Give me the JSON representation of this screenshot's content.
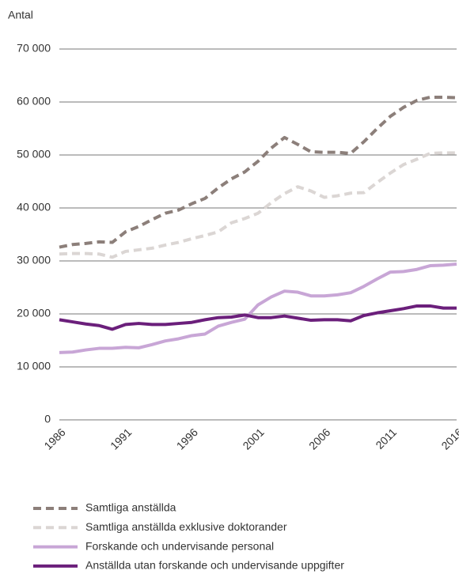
{
  "chart_data": {
    "type": "line",
    "y_label": "Antal",
    "x": [
      1986,
      1987,
      1988,
      1989,
      1990,
      1991,
      1992,
      1993,
      1994,
      1995,
      1996,
      1997,
      1998,
      1999,
      2000,
      2001,
      2002,
      2003,
      2004,
      2005,
      2006,
      2007,
      2008,
      2009,
      2010,
      2011,
      2012,
      2013,
      2014,
      2015,
      2016
    ],
    "xlim": [
      1986,
      2016
    ],
    "xticks": [
      1986,
      1991,
      1996,
      2001,
      2006,
      2011,
      2016
    ],
    "ylim": [
      0,
      70000
    ],
    "yticks": [
      0,
      {
        "value": 10000,
        "label": "10 000"
      },
      {
        "value": 20000,
        "label": "20 000"
      },
      {
        "value": 30000,
        "label": "30 000"
      },
      {
        "value": 40000,
        "label": "40 000"
      },
      {
        "value": 50000,
        "label": "50 000"
      },
      {
        "value": 60000,
        "label": "60 000"
      },
      {
        "value": 70000,
        "label": "70 000"
      }
    ],
    "grid": true,
    "legend": "bottom",
    "series": [
      {
        "name": "Samtliga anställda",
        "color": "#8c7f7a",
        "style": "dashed",
        "values": [
          32600,
          33100,
          33300,
          33600,
          33500,
          35500,
          36500,
          37800,
          39000,
          39600,
          40800,
          41800,
          43800,
          45500,
          46800,
          48800,
          51300,
          53300,
          52000,
          50600,
          50500,
          50500,
          50300,
          52500,
          55000,
          57300,
          59000,
          60300,
          60900,
          60900,
          60800
        ]
      },
      {
        "name": "Samtliga anställda exklusive doktorander",
        "color": "#dbd6d4",
        "style": "dashed",
        "values": [
          31300,
          31400,
          31400,
          31300,
          30700,
          31800,
          32100,
          32400,
          33000,
          33500,
          34200,
          34800,
          35500,
          37200,
          38000,
          39000,
          41000,
          42700,
          44000,
          43200,
          42000,
          42300,
          42800,
          42900,
          44800,
          46600,
          48200,
          49200,
          50300,
          50400,
          50400
        ]
      },
      {
        "name": "Forskande  och undervisande personal",
        "color": "#c8a6d6",
        "style": "solid",
        "values": [
          12700,
          12800,
          13200,
          13500,
          13500,
          13700,
          13600,
          14200,
          14900,
          15300,
          15900,
          16200,
          17700,
          18400,
          19000,
          21700,
          23200,
          24300,
          24100,
          23400,
          23400,
          23600,
          24000,
          25200,
          26600,
          27900,
          28000,
          28400,
          29100,
          29200,
          29400
        ]
      },
      {
        "name": "Anställda utan forskande och undervisande uppgifter",
        "color": "#6b1f7b",
        "style": "solid",
        "values": [
          18900,
          18500,
          18100,
          17800,
          17100,
          18000,
          18200,
          18000,
          18000,
          18200,
          18400,
          18900,
          19300,
          19400,
          19800,
          19300,
          19300,
          19600,
          19200,
          18800,
          18900,
          18900,
          18700,
          19700,
          20200,
          20600,
          21000,
          21500,
          21500,
          21100,
          21100
        ]
      }
    ]
  }
}
